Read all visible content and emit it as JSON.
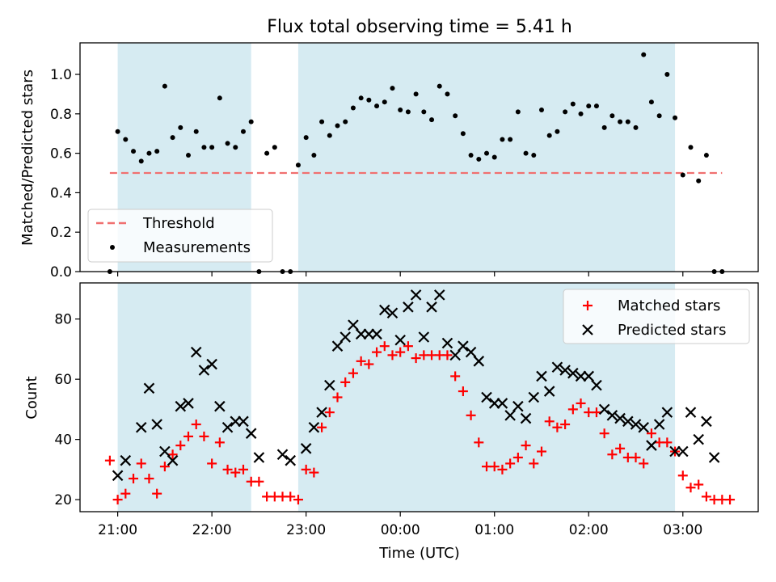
{
  "figure": {
    "title": "Flux total observing time = 5.41 h"
  },
  "chart_data": [
    {
      "panel": "top",
      "type": "scatter",
      "ylabel": "Matched/Predicted stars",
      "ylim": [
        0,
        1.16
      ],
      "yticks": [
        0.0,
        0.2,
        0.4,
        0.6,
        0.8,
        1.0
      ],
      "ytick_labels": [
        "0.0",
        "0.2",
        "0.4",
        "0.6",
        "0.8",
        "1.0"
      ],
      "xlim": [
        "20:36",
        "03:48"
      ],
      "xticks": [
        "21:00",
        "22:00",
        "23:00",
        "00:00",
        "01:00",
        "02:00",
        "03:00"
      ],
      "shaded_intervals": [
        [
          "21:00",
          "22:25"
        ],
        [
          "22:55",
          "02:55"
        ]
      ],
      "threshold": {
        "name": "Threshold",
        "value": 0.5,
        "x": [
          "20:55",
          "03:25"
        ],
        "color": "#f07070",
        "style": "dashed"
      },
      "legend": {
        "placement": "lower-left",
        "entries": [
          "Threshold",
          "Measurements"
        ]
      },
      "series": [
        {
          "name": "Measurements",
          "marker": "dot",
          "color": "#000000",
          "points": [
            [
              "20:55",
              0.0
            ],
            [
              "21:00",
              0.71
            ],
            [
              "21:05",
              0.67
            ],
            [
              "21:10",
              0.61
            ],
            [
              "21:15",
              0.56
            ],
            [
              "21:20",
              0.6
            ],
            [
              "21:25",
              0.61
            ],
            [
              "21:30",
              0.94
            ],
            [
              "21:35",
              0.68
            ],
            [
              "21:40",
              0.73
            ],
            [
              "21:45",
              0.59
            ],
            [
              "21:50",
              0.71
            ],
            [
              "21:55",
              0.63
            ],
            [
              "22:00",
              0.63
            ],
            [
              "22:05",
              0.88
            ],
            [
              "22:10",
              0.65
            ],
            [
              "22:15",
              0.63
            ],
            [
              "22:20",
              0.71
            ],
            [
              "22:25",
              0.76
            ],
            [
              "22:30",
              0.0
            ],
            [
              "22:35",
              0.6
            ],
            [
              "22:40",
              0.63
            ],
            [
              "22:45",
              0.0
            ],
            [
              "22:50",
              0.0
            ],
            [
              "22:55",
              0.54
            ],
            [
              "23:00",
              0.68
            ],
            [
              "23:05",
              0.59
            ],
            [
              "23:10",
              0.76
            ],
            [
              "23:15",
              0.69
            ],
            [
              "23:20",
              0.74
            ],
            [
              "23:25",
              0.76
            ],
            [
              "23:30",
              0.83
            ],
            [
              "23:35",
              0.88
            ],
            [
              "23:40",
              0.87
            ],
            [
              "23:45",
              0.84
            ],
            [
              "23:50",
              0.86
            ],
            [
              "23:55",
              0.93
            ],
            [
              "00:00",
              0.82
            ],
            [
              "00:05",
              0.81
            ],
            [
              "00:10",
              0.9
            ],
            [
              "00:15",
              0.81
            ],
            [
              "00:20",
              0.77
            ],
            [
              "00:25",
              0.94
            ],
            [
              "00:30",
              0.9
            ],
            [
              "00:35",
              0.79
            ],
            [
              "00:40",
              0.7
            ],
            [
              "00:45",
              0.59
            ],
            [
              "00:50",
              0.57
            ],
            [
              "00:55",
              0.6
            ],
            [
              "01:00",
              0.58
            ],
            [
              "01:05",
              0.67
            ],
            [
              "01:10",
              0.67
            ],
            [
              "01:15",
              0.81
            ],
            [
              "01:20",
              0.6
            ],
            [
              "01:25",
              0.59
            ],
            [
              "01:30",
              0.82
            ],
            [
              "01:35",
              0.69
            ],
            [
              "01:40",
              0.71
            ],
            [
              "01:45",
              0.81
            ],
            [
              "01:50",
              0.85
            ],
            [
              "01:55",
              0.8
            ],
            [
              "02:00",
              0.84
            ],
            [
              "02:05",
              0.84
            ],
            [
              "02:10",
              0.73
            ],
            [
              "02:15",
              0.79
            ],
            [
              "02:20",
              0.76
            ],
            [
              "02:25",
              0.76
            ],
            [
              "02:30",
              0.73
            ],
            [
              "02:35",
              1.1
            ],
            [
              "02:40",
              0.86
            ],
            [
              "02:45",
              0.79
            ],
            [
              "02:50",
              1.0
            ],
            [
              "02:55",
              0.78
            ],
            [
              "03:00",
              0.49
            ],
            [
              "03:05",
              0.63
            ],
            [
              "03:10",
              0.46
            ],
            [
              "03:15",
              0.59
            ],
            [
              "03:20",
              0.0
            ],
            [
              "03:25",
              0.0
            ]
          ]
        }
      ]
    },
    {
      "panel": "bottom",
      "type": "scatter",
      "xlabel": "Time (UTC)",
      "ylabel": "Count",
      "ylim": [
        16,
        92
      ],
      "yticks": [
        20,
        40,
        60,
        80
      ],
      "ytick_labels": [
        "20",
        "40",
        "60",
        "80"
      ],
      "xlim": [
        "20:36",
        "03:48"
      ],
      "xticks": [
        "21:00",
        "22:00",
        "23:00",
        "00:00",
        "01:00",
        "02:00",
        "03:00"
      ],
      "xtick_labels": [
        "21:00",
        "22:00",
        "23:00",
        "00:00",
        "01:00",
        "02:00",
        "03:00"
      ],
      "shaded_intervals": [
        [
          "21:00",
          "22:25"
        ],
        [
          "22:55",
          "02:55"
        ]
      ],
      "legend": {
        "placement": "top-right",
        "entries": [
          "Matched stars",
          "Predicted stars"
        ]
      },
      "series": [
        {
          "name": "Matched stars",
          "marker": "plus",
          "color": "#ff0000",
          "points": [
            [
              "20:55",
              33
            ],
            [
              "21:00",
              20
            ],
            [
              "21:05",
              22
            ],
            [
              "21:10",
              27
            ],
            [
              "21:15",
              32
            ],
            [
              "21:20",
              27
            ],
            [
              "21:25",
              22
            ],
            [
              "21:30",
              31
            ],
            [
              "21:35",
              35
            ],
            [
              "21:40",
              38
            ],
            [
              "21:45",
              41
            ],
            [
              "21:50",
              45
            ],
            [
              "21:55",
              41
            ],
            [
              "22:00",
              32
            ],
            [
              "22:05",
              39
            ],
            [
              "22:10",
              30
            ],
            [
              "22:15",
              29
            ],
            [
              "22:20",
              30
            ],
            [
              "22:25",
              26
            ],
            [
              "22:30",
              26
            ],
            [
              "22:35",
              21
            ],
            [
              "22:40",
              21
            ],
            [
              "22:45",
              21
            ],
            [
              "22:50",
              21
            ],
            [
              "22:55",
              20
            ],
            [
              "23:00",
              30
            ],
            [
              "23:05",
              29
            ],
            [
              "23:10",
              44
            ],
            [
              "23:15",
              49
            ],
            [
              "23:20",
              54
            ],
            [
              "23:25",
              59
            ],
            [
              "23:30",
              62
            ],
            [
              "23:35",
              66
            ],
            [
              "23:40",
              65
            ],
            [
              "23:45",
              69
            ],
            [
              "23:50",
              71
            ],
            [
              "23:55",
              68
            ],
            [
              "00:00",
              69
            ],
            [
              "00:05",
              71
            ],
            [
              "00:10",
              67
            ],
            [
              "00:15",
              68
            ],
            [
              "00:20",
              68
            ],
            [
              "00:25",
              68
            ],
            [
              "00:30",
              68
            ],
            [
              "00:35",
              61
            ],
            [
              "00:40",
              56
            ],
            [
              "00:45",
              48
            ],
            [
              "00:50",
              39
            ],
            [
              "00:55",
              31
            ],
            [
              "01:00",
              31
            ],
            [
              "01:05",
              30
            ],
            [
              "01:10",
              32
            ],
            [
              "01:15",
              34
            ],
            [
              "01:20",
              38
            ],
            [
              "01:25",
              32
            ],
            [
              "01:30",
              36
            ],
            [
              "01:35",
              46
            ],
            [
              "01:40",
              44
            ],
            [
              "01:45",
              45
            ],
            [
              "01:50",
              50
            ],
            [
              "01:55",
              52
            ],
            [
              "02:00",
              49
            ],
            [
              "02:05",
              49
            ],
            [
              "02:10",
              42
            ],
            [
              "02:15",
              35
            ],
            [
              "02:20",
              37
            ],
            [
              "02:25",
              34
            ],
            [
              "02:30",
              34
            ],
            [
              "02:35",
              32
            ],
            [
              "02:40",
              42
            ],
            [
              "02:45",
              39
            ],
            [
              "02:50",
              39
            ],
            [
              "02:55",
              36
            ],
            [
              "03:00",
              28
            ],
            [
              "03:05",
              24
            ],
            [
              "03:10",
              25
            ],
            [
              "03:15",
              21
            ],
            [
              "03:20",
              20
            ],
            [
              "03:25",
              20
            ],
            [
              "03:30",
              20
            ]
          ]
        },
        {
          "name": "Predicted stars",
          "marker": "x",
          "color": "#000000",
          "points": [
            [
              "21:00",
              28
            ],
            [
              "21:05",
              33
            ],
            [
              "21:15",
              44
            ],
            [
              "21:20",
              57
            ],
            [
              "21:25",
              45
            ],
            [
              "21:30",
              36
            ],
            [
              "21:35",
              33
            ],
            [
              "21:40",
              51
            ],
            [
              "21:45",
              52
            ],
            [
              "21:50",
              69
            ],
            [
              "21:55",
              63
            ],
            [
              "22:00",
              65
            ],
            [
              "22:05",
              51
            ],
            [
              "22:10",
              44
            ],
            [
              "22:15",
              46
            ],
            [
              "22:20",
              46
            ],
            [
              "22:25",
              42
            ],
            [
              "22:30",
              34
            ],
            [
              "22:45",
              35
            ],
            [
              "22:50",
              33
            ],
            [
              "23:00",
              37
            ],
            [
              "23:05",
              44
            ],
            [
              "23:10",
              49
            ],
            [
              "23:15",
              58
            ],
            [
              "23:20",
              71
            ],
            [
              "23:25",
              74
            ],
            [
              "23:30",
              78
            ],
            [
              "23:35",
              75
            ],
            [
              "23:40",
              75
            ],
            [
              "23:45",
              75
            ],
            [
              "23:50",
              83
            ],
            [
              "23:55",
              82
            ],
            [
              "00:00",
              73
            ],
            [
              "00:05",
              84
            ],
            [
              "00:10",
              88
            ],
            [
              "00:15",
              74
            ],
            [
              "00:20",
              84
            ],
            [
              "00:25",
              88
            ],
            [
              "00:30",
              72
            ],
            [
              "00:35",
              68
            ],
            [
              "00:40",
              71
            ],
            [
              "00:45",
              69
            ],
            [
              "00:50",
              66
            ],
            [
              "00:55",
              54
            ],
            [
              "01:00",
              52
            ],
            [
              "01:05",
              52
            ],
            [
              "01:10",
              48
            ],
            [
              "01:15",
              51
            ],
            [
              "01:20",
              47
            ],
            [
              "01:25",
              54
            ],
            [
              "01:30",
              61
            ],
            [
              "01:35",
              56
            ],
            [
              "01:40",
              64
            ],
            [
              "01:45",
              63
            ],
            [
              "01:50",
              62
            ],
            [
              "01:55",
              61
            ],
            [
              "02:00",
              61
            ],
            [
              "02:05",
              58
            ],
            [
              "02:10",
              50
            ],
            [
              "02:15",
              48
            ],
            [
              "02:20",
              47
            ],
            [
              "02:25",
              46
            ],
            [
              "02:30",
              45
            ],
            [
              "02:35",
              44
            ],
            [
              "02:40",
              38
            ],
            [
              "02:45",
              45
            ],
            [
              "02:50",
              49
            ],
            [
              "02:55",
              36
            ],
            [
              "03:00",
              36
            ],
            [
              "03:05",
              49
            ],
            [
              "03:10",
              40
            ],
            [
              "03:15",
              46
            ],
            [
              "03:20",
              34
            ]
          ]
        }
      ]
    }
  ]
}
